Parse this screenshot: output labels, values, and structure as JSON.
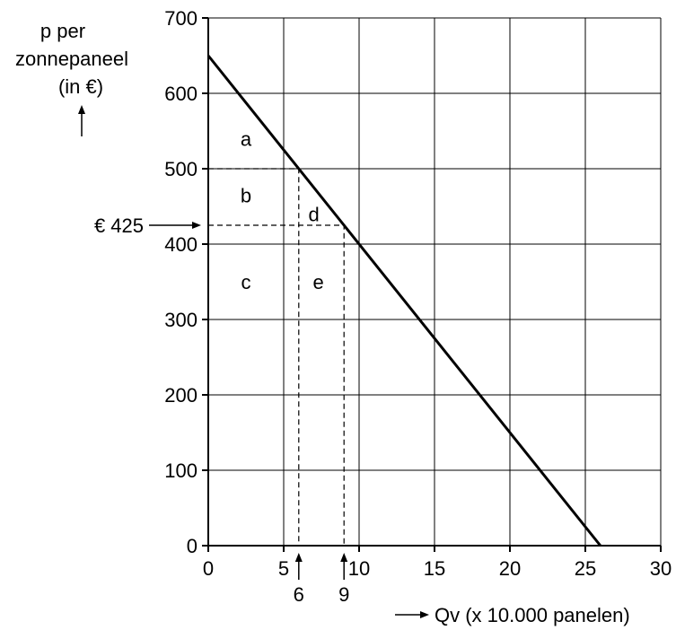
{
  "chart_data": {
    "type": "line",
    "ylabel_lines": [
      "p per",
      "zonnepaneel",
      "(in €)"
    ],
    "xlabel": "Qv (x 10.000 panelen)",
    "xlim": [
      0,
      30
    ],
    "ylim": [
      0,
      700
    ],
    "x_ticks": [
      0,
      5,
      10,
      15,
      20,
      25,
      30
    ],
    "y_ticks": [
      0,
      100,
      200,
      300,
      400,
      500,
      600,
      700
    ],
    "grid": true,
    "series": [
      {
        "x": [
          0,
          26
        ],
        "y": [
          650,
          0
        ]
      }
    ],
    "reference_lines": [
      {
        "price": 500,
        "quantity": 6
      },
      {
        "price": 425,
        "quantity": 9
      }
    ],
    "marked_quantities": [
      {
        "value": 6,
        "label": "6"
      },
      {
        "value": 9,
        "label": "9"
      }
    ],
    "marked_price": {
      "value": 425,
      "label": "€ 425"
    },
    "regions": [
      {
        "label": "a",
        "x": 2.5,
        "y": 540
      },
      {
        "label": "b",
        "x": 2.5,
        "y": 465
      },
      {
        "label": "d",
        "x": 7,
        "y": 440
      },
      {
        "label": "c",
        "x": 2.5,
        "y": 350
      },
      {
        "label": "e",
        "x": 7.3,
        "y": 350
      }
    ]
  }
}
